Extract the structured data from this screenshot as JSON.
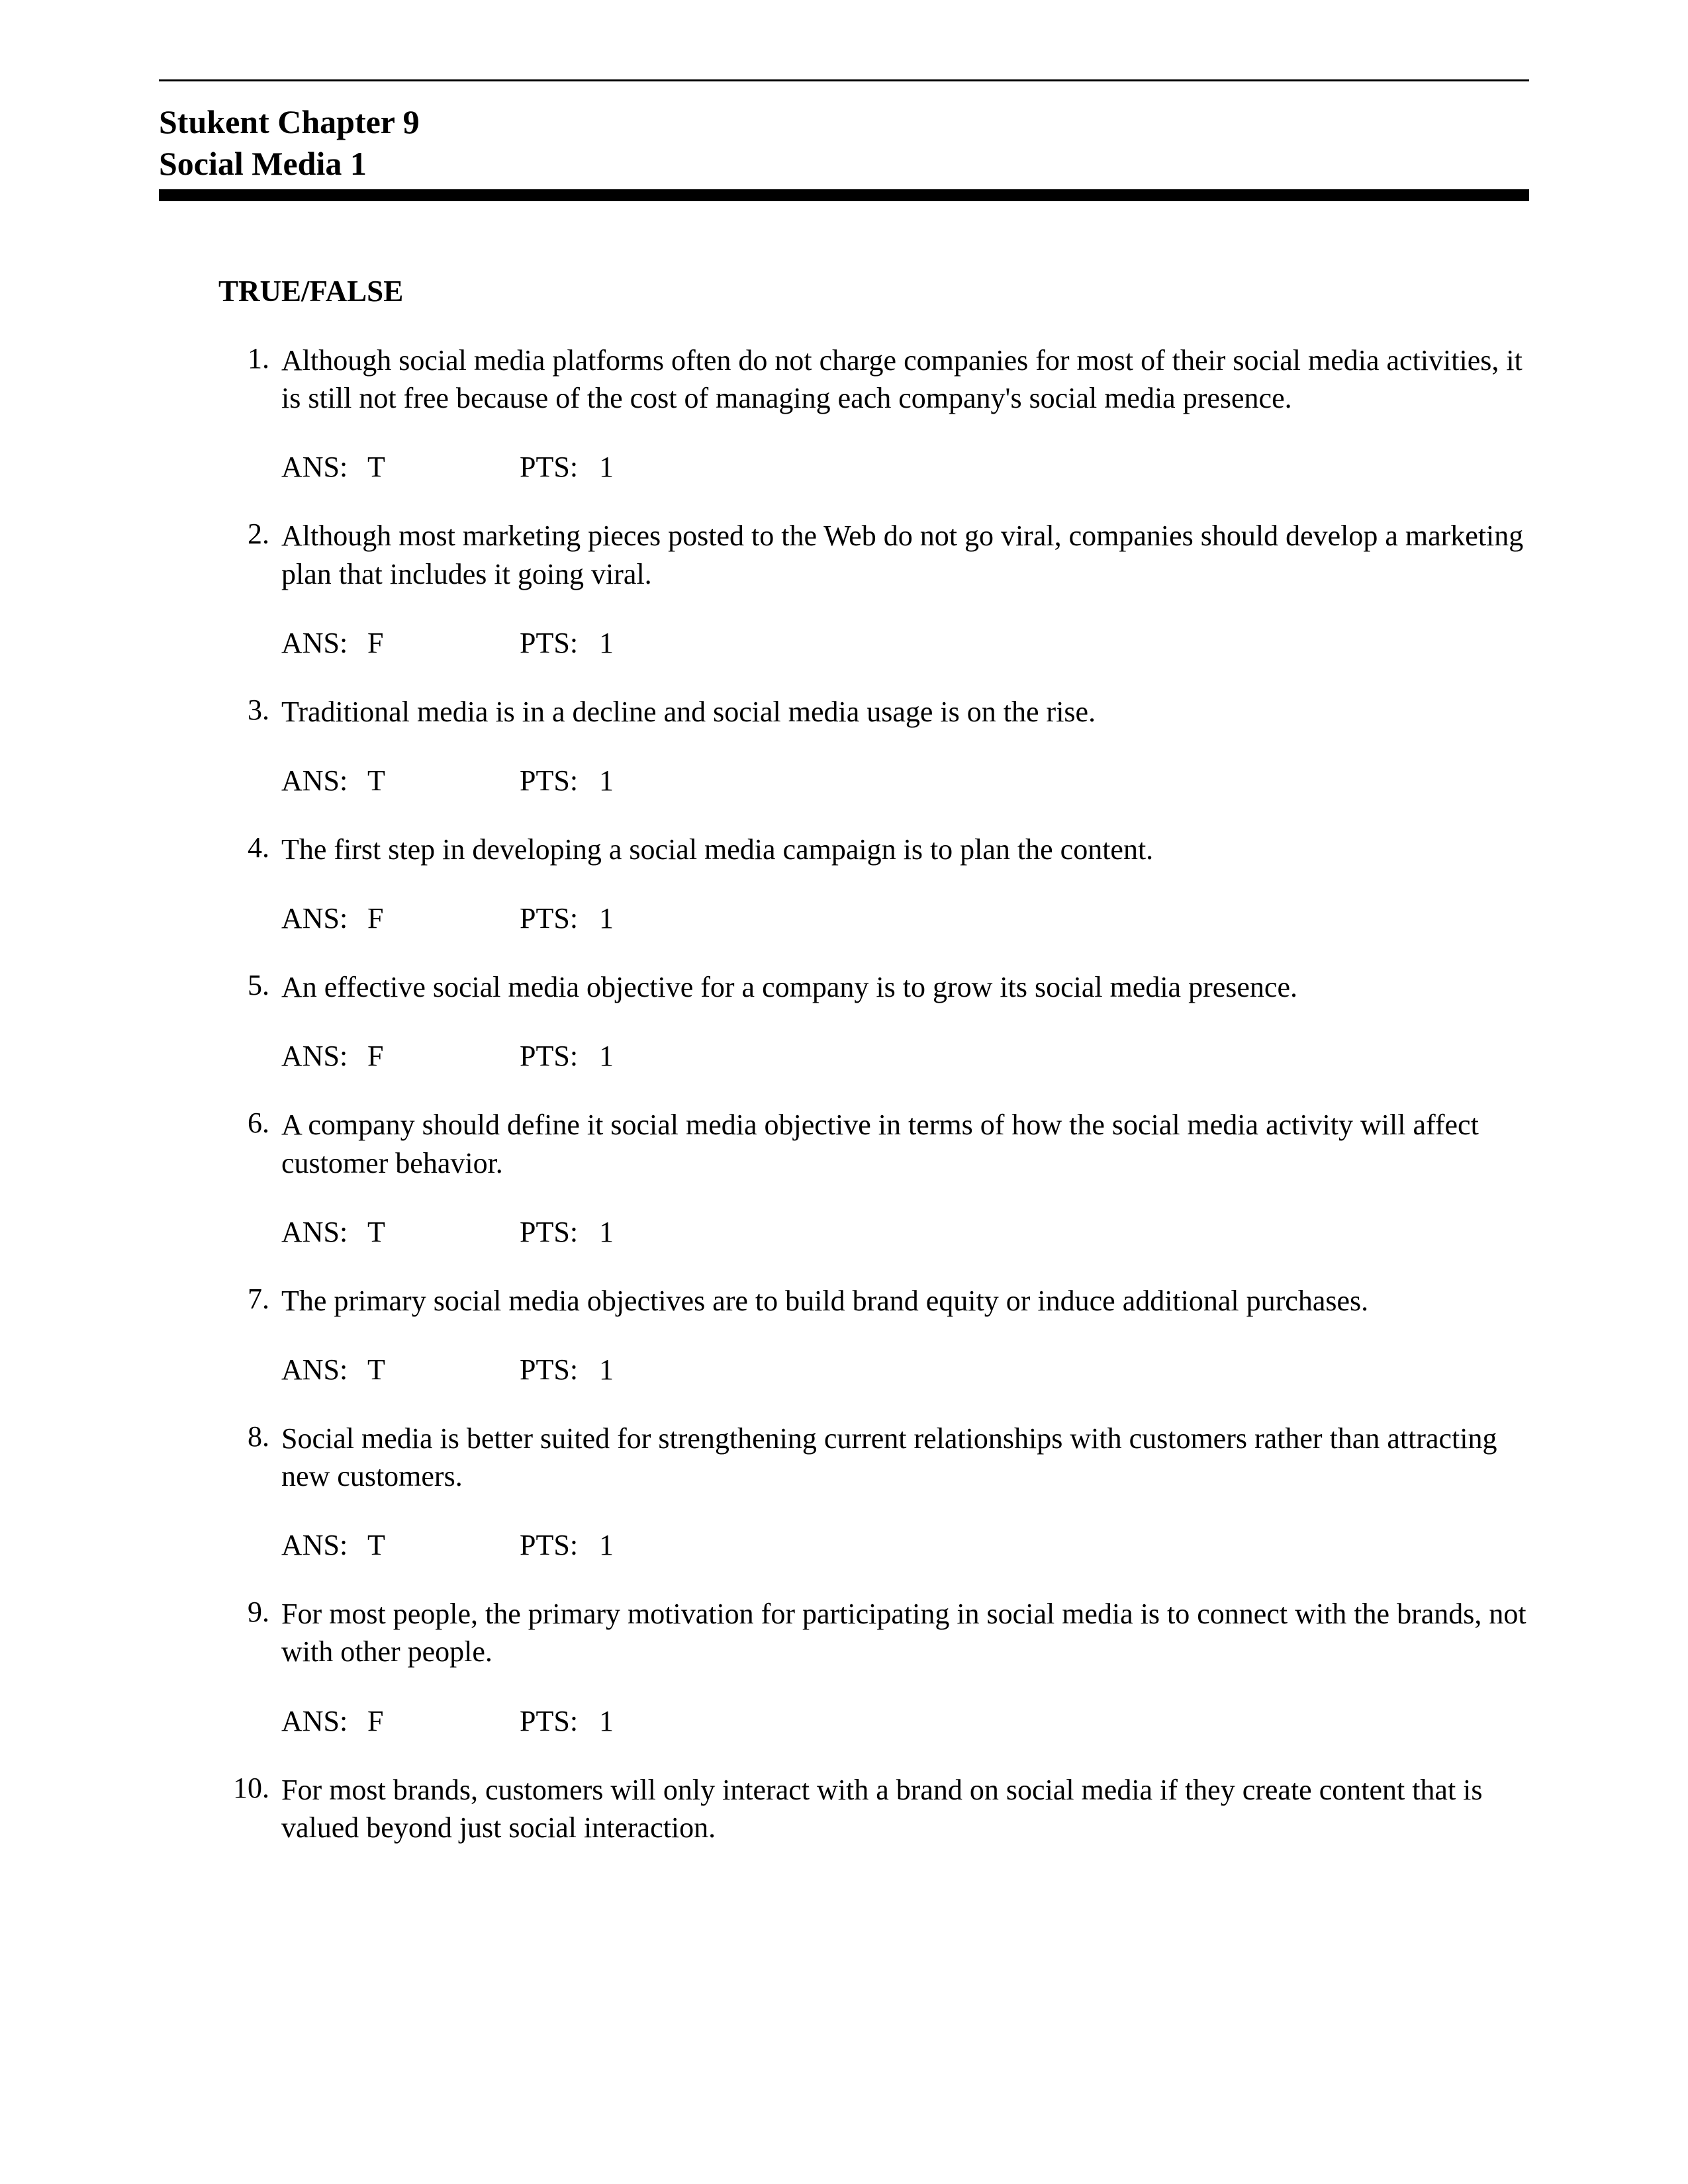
{
  "header": {
    "line1": "Stukent Chapter 9",
    "line2": "Social Media 1"
  },
  "section_heading": "TRUE/FALSE",
  "labels": {
    "ans": "ANS:",
    "pts": "PTS:"
  },
  "questions": [
    {
      "num": "1.",
      "text": "Although social media platforms often do not charge companies for most of their social media activities, it is still not free because of the cost of managing each company's social media presence.",
      "ans": "T",
      "pts": "1"
    },
    {
      "num": "2.",
      "text": "Although most marketing pieces posted to the Web do not go viral, companies should develop a marketing plan that includes it going viral.",
      "ans": "F",
      "pts": "1"
    },
    {
      "num": "3.",
      "text": "Traditional media is in a decline and social media usage is on the rise.",
      "ans": "T",
      "pts": "1"
    },
    {
      "num": "4.",
      "text": "The first step in developing a social  media campaign is to plan the content.",
      "ans": "F",
      "pts": "1"
    },
    {
      "num": "5.",
      "text": "An effective social media objective for a company is to grow its social media presence.",
      "ans": "F",
      "pts": "1"
    },
    {
      "num": "6.",
      "text": "A company should  define it social media objective in terms of how the social media activity will affect customer behavior.",
      "ans": "T",
      "pts": "1"
    },
    {
      "num": "7.",
      "text": "The primary social media objectives are to build brand equity or induce additional purchases.",
      "ans": "T",
      "pts": "1"
    },
    {
      "num": "8.",
      "text": "Social media is better suited for strengthening current relationships with customers rather than attracting new customers.",
      "ans": "T",
      "pts": "1"
    },
    {
      "num": "9.",
      "text": "For most people, the primary motivation for participating in social media is to connect with the brands, not with other people.",
      "ans": "F",
      "pts": "1"
    },
    {
      "num": "10.",
      "text": "For most brands, customers will only interact with a brand on social media if they create content that is valued beyond just social interaction.",
      "ans": "",
      "pts": ""
    }
  ]
}
